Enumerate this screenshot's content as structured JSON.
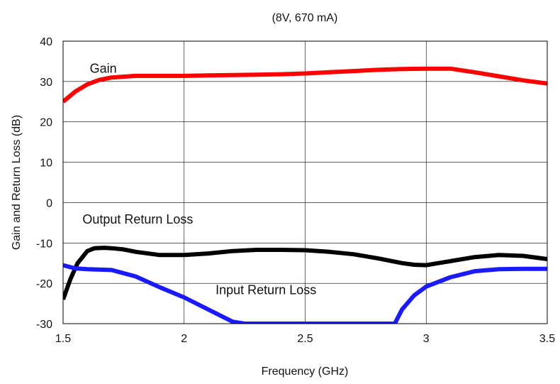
{
  "chart_data": {
    "type": "line",
    "title": "(8V, 670 mA)",
    "xlabel": "Frequency (GHz)",
    "ylabel": "Gain and Return Loss (dB)",
    "xlim": [
      1.5,
      3.5
    ],
    "ylim": [
      -30,
      40
    ],
    "xticks": [
      1.5,
      2,
      2.5,
      3,
      3.5
    ],
    "xtick_labels": [
      "1.5",
      "2",
      "2.5",
      "3",
      "3.5"
    ],
    "yticks": [
      40,
      30,
      20,
      10,
      0,
      -10,
      -20,
      -30
    ],
    "ytick_labels": [
      "40",
      "30",
      "20",
      "10",
      "0",
      "-10",
      "-20",
      "-30"
    ],
    "grid": true,
    "legend": "none",
    "series": [
      {
        "name": "Gain",
        "color": "#ff0000",
        "x": [
          1.5,
          1.55,
          1.6,
          1.65,
          1.7,
          1.75,
          1.8,
          1.9,
          2.0,
          2.1,
          2.2,
          2.3,
          2.4,
          2.5,
          2.6,
          2.7,
          2.8,
          2.9,
          3.0,
          3.1,
          3.2,
          3.3,
          3.4,
          3.5
        ],
        "y": [
          25,
          27.5,
          29.3,
          30.4,
          31.0,
          31.2,
          31.4,
          31.4,
          31.4,
          31.5,
          31.6,
          31.7,
          31.8,
          32.0,
          32.3,
          32.6,
          32.9,
          33.1,
          33.2,
          33.2,
          32.3,
          31.3,
          30.3,
          29.5
        ]
      },
      {
        "name": "Output Return Loss",
        "color": "#000000",
        "x": [
          1.5,
          1.53,
          1.56,
          1.6,
          1.63,
          1.67,
          1.7,
          1.75,
          1.8,
          1.9,
          2.0,
          2.1,
          2.2,
          2.3,
          2.4,
          2.5,
          2.6,
          2.7,
          2.8,
          2.9,
          2.95,
          3.0,
          3.05,
          3.1,
          3.2,
          3.3,
          3.4,
          3.5
        ],
        "y": [
          -24,
          -19,
          -15,
          -12,
          -11.3,
          -11.2,
          -11.3,
          -11.6,
          -12.2,
          -13.0,
          -13.0,
          -12.6,
          -12.0,
          -11.7,
          -11.7,
          -11.8,
          -12.2,
          -12.8,
          -13.8,
          -15.0,
          -15.4,
          -15.5,
          -15.0,
          -14.5,
          -13.5,
          -13.0,
          -13.2,
          -14.0
        ]
      },
      {
        "name": "Input Return Loss",
        "color": "#1a1aff",
        "x": [
          1.5,
          1.55,
          1.6,
          1.7,
          1.8,
          1.9,
          2.0,
          2.1,
          2.2,
          2.25,
          2.87,
          2.9,
          2.95,
          3.0,
          3.1,
          3.2,
          3.3,
          3.4,
          3.5
        ],
        "y": [
          -15.5,
          -16.3,
          -16.5,
          -16.7,
          -18.3,
          -21.0,
          -23.5,
          -26.5,
          -29.5,
          -30.0,
          -30.0,
          -26.5,
          -23.0,
          -20.8,
          -18.5,
          -17.0,
          -16.5,
          -16.4,
          -16.4
        ]
      }
    ],
    "annotations": [
      {
        "text": "Gain",
        "x": 1.61,
        "y": 32.2
      },
      {
        "text": "Output Return Loss",
        "x": 1.58,
        "y": -5.2
      },
      {
        "text": "Input Return Loss",
        "x": 2.13,
        "y": -22.7
      }
    ]
  }
}
